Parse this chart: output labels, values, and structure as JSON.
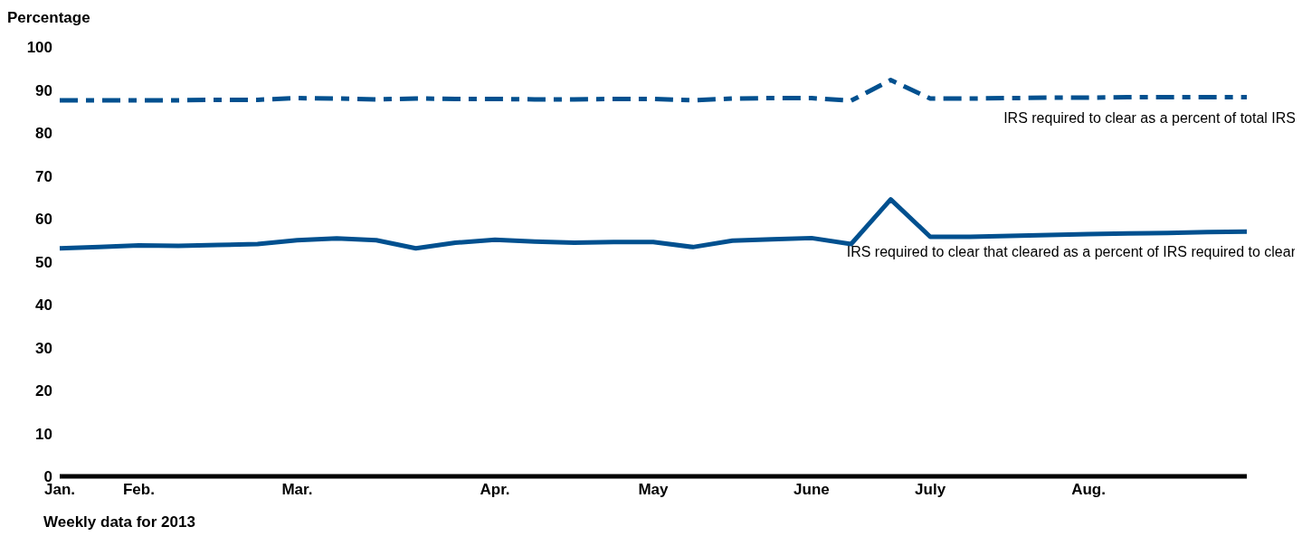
{
  "chart_data": {
    "type": "line",
    "ylabel": "Percentage",
    "xlabel": "Weekly data for 2013",
    "categories": [
      "Jan.",
      null,
      "Feb.",
      null,
      null,
      null,
      "Mar.",
      null,
      null,
      null,
      null,
      "Apr.",
      null,
      null,
      null,
      "May",
      null,
      null,
      null,
      "June",
      null,
      null,
      "July",
      null,
      null,
      null,
      "Aug.",
      null,
      null,
      null,
      null
    ],
    "series": [
      {
        "name": "IRS required to clear as a percent of total IRS",
        "color": "#00508f",
        "line_style": "dashed",
        "values": [
          87.6,
          87.6,
          87.6,
          87.6,
          87.7,
          87.7,
          88.1,
          88.0,
          87.8,
          88.0,
          87.9,
          87.9,
          87.8,
          87.8,
          87.9,
          87.9,
          87.6,
          88.0,
          88.1,
          88.1,
          87.5,
          92.3,
          88.0,
          88.0,
          88.1,
          88.2,
          88.2,
          88.3,
          88.3,
          88.3,
          88.3
        ]
      },
      {
        "name": "IRS required to clear that cleared as a percent of IRS required to clear",
        "color": "#00508f",
        "line_style": "solid",
        "values": [
          53.1,
          53.4,
          53.8,
          53.7,
          53.9,
          54.1,
          55.0,
          55.4,
          55.0,
          53.1,
          54.4,
          55.1,
          54.7,
          54.4,
          54.6,
          54.6,
          53.4,
          54.9,
          55.2,
          55.5,
          54.1,
          64.5,
          55.8,
          55.8,
          56.0,
          56.2,
          56.4,
          56.6,
          56.7,
          56.9,
          57.0
        ]
      }
    ],
    "ylim": [
      0,
      100
    ],
    "yticks": [
      0,
      10,
      20,
      30,
      40,
      50,
      60,
      70,
      80,
      90,
      100
    ],
    "grid": false,
    "legend": false,
    "marker": "none"
  }
}
